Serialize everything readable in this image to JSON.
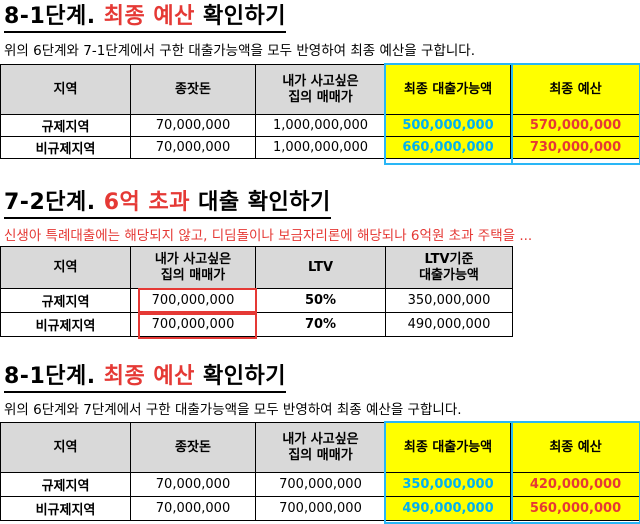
{
  "s1": {
    "title_a": "8-1단계. ",
    "title_b": "최종 예산",
    "title_c": " 확인하기",
    "desc": "위의 6단계와 7-1단계에서 구한 대출가능액을 모두 반영하여 최종 예산을 구합니다.",
    "headers": [
      "지역",
      "종잣돈",
      "내가 사고싶은\n집의 매매가",
      "최종 대출가능액",
      "최종 예산"
    ],
    "rows": [
      [
        "규제지역",
        "70,000,000",
        "1,000,000,000",
        "500,000,000",
        "570,000,000"
      ],
      [
        "비규제지역",
        "70,000,000",
        "1,000,000,000",
        "660,000,000",
        "730,000,000"
      ]
    ]
  },
  "s2": {
    "title_a": "7-2단계. ",
    "title_b": "6억 초과",
    "title_c": " 대출 확인하기",
    "desc": "신생아 특례대출에는 해당되지 않고, 디딤돌이나 보금자리론에 해당되나 6억원 초과 주택을 ...",
    "headers": [
      "지역",
      "내가 사고싶은\n집의 매매가",
      "LTV",
      "LTV기준\n대출가능액"
    ],
    "rows": [
      [
        "규제지역",
        "700,000,000",
        "50%",
        "350,000,000"
      ],
      [
        "비규제지역",
        "700,000,000",
        "70%",
        "490,000,000"
      ]
    ]
  },
  "s3": {
    "title_a": "8-1단계. ",
    "title_b": "최종 예산",
    "title_c": " 확인하기",
    "desc": "위의 6단계와 7단계에서 구한 대출가능액을 모두 반영하여 최종 예산을 구합니다.",
    "headers": [
      "지역",
      "종잣돈",
      "내가 사고싶은\n집의 매매가",
      "최종 대출가능액",
      "최종 예산"
    ],
    "rows": [
      [
        "규제지역",
        "70,000,000",
        "700,000,000",
        "350,000,000",
        "420,000,000"
      ],
      [
        "비규제지역",
        "70,000,000",
        "700,000,000",
        "490,000,000",
        "560,000,000"
      ]
    ]
  }
}
